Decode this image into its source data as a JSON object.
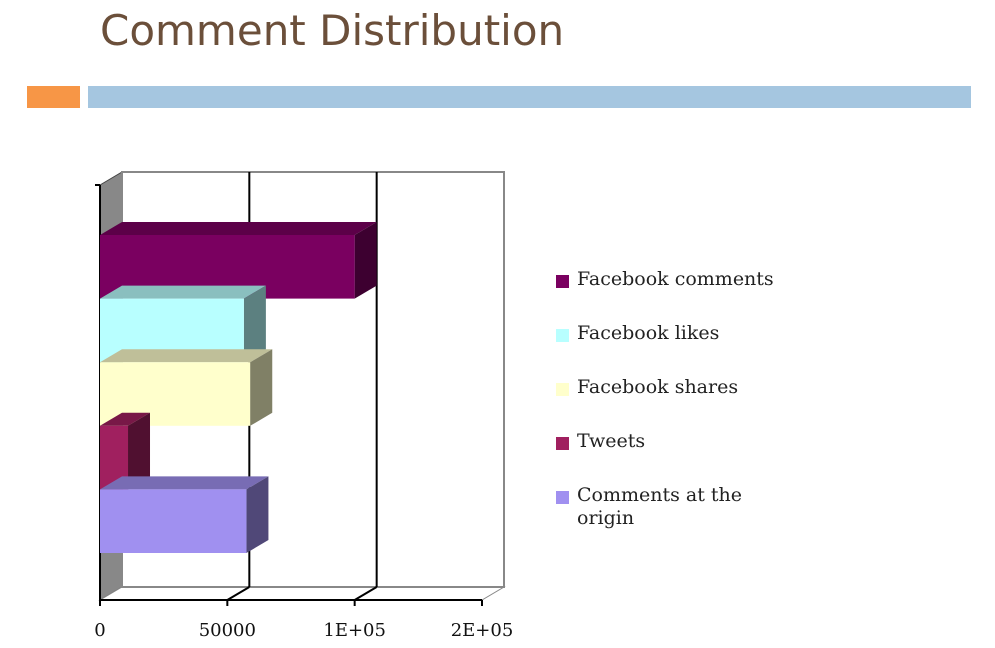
{
  "title": "Comment Distribution",
  "chart_data": {
    "type": "bar3d",
    "orientation": "horizontal",
    "categories": [
      null
    ],
    "series": [
      {
        "name": "Facebook comments",
        "color": "#7a0060",
        "values": [
          100000
        ]
      },
      {
        "name": "Facebook likes",
        "color": "#b8ffff",
        "values": [
          56500
        ]
      },
      {
        "name": "Facebook shares",
        "color": "#ffffcc",
        "values": [
          59000
        ]
      },
      {
        "name": "Tweets",
        "color": "#a0205f",
        "values": [
          11000
        ]
      },
      {
        "name": "Comments at the origin",
        "color": "#a090f0",
        "values": [
          57500
        ]
      }
    ],
    "xlim": [
      0,
      150000
    ],
    "xticks": [
      0,
      50000,
      {
        "value": 100000,
        "label": "1E+05"
      },
      {
        "value": 150000,
        "label": "2E+05"
      }
    ],
    "grid": true,
    "legend": "right"
  }
}
